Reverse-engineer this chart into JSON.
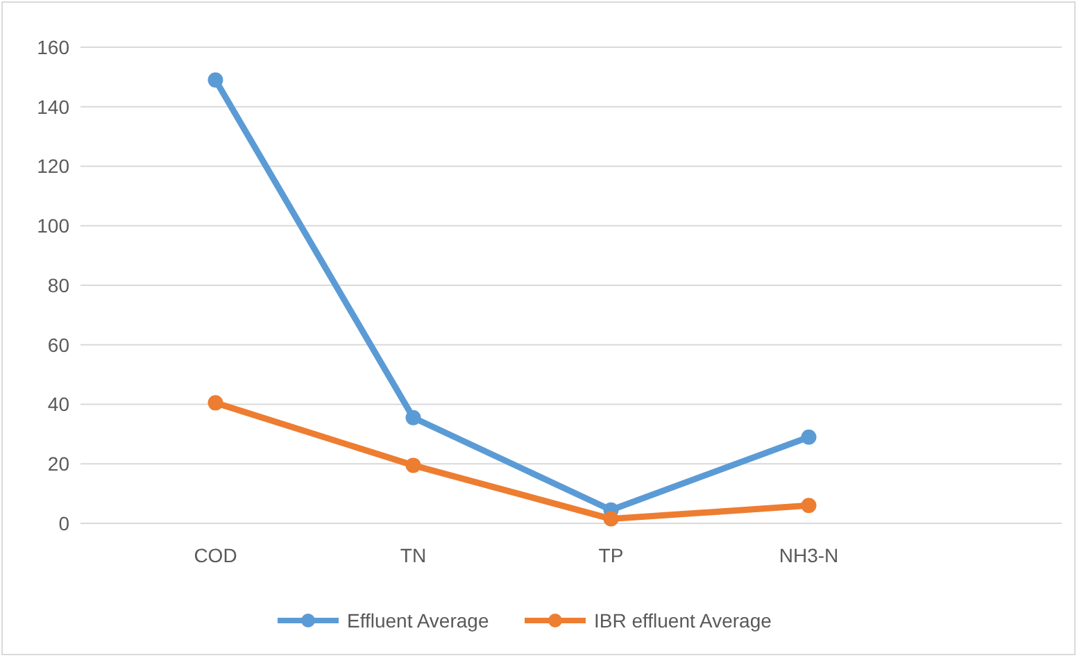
{
  "chart_data": {
    "type": "line",
    "categories": [
      "COD",
      "TN",
      "TP",
      "NH3-N"
    ],
    "series": [
      {
        "name": "Effluent Average",
        "color": "#5b9bd5",
        "values": [
          149,
          35.5,
          4.5,
          29
        ]
      },
      {
        "name": "IBR effluent Average",
        "color": "#ed7d31",
        "values": [
          40.5,
          19.5,
          1.5,
          6
        ]
      }
    ],
    "ylim": [
      0,
      160
    ],
    "yticks": [
      0,
      20,
      40,
      60,
      80,
      100,
      120,
      140,
      160
    ],
    "grid": "y",
    "legend": "bottom",
    "marker": "circle",
    "line_style": "solid"
  }
}
